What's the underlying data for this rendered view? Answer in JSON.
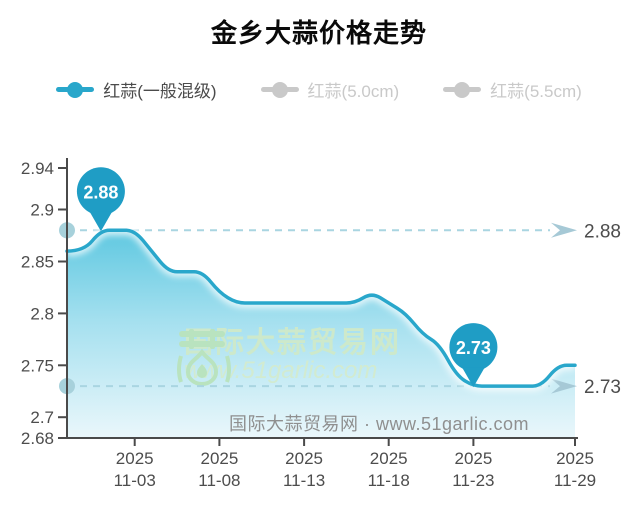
{
  "title": "金乡大蒜价格走势",
  "legend": {
    "items": [
      {
        "label": "红蒜(一般混级)",
        "active": true
      },
      {
        "label": "红蒜(5.0cm)",
        "active": false
      },
      {
        "label": "红蒜(5.5cm)",
        "active": false
      }
    ]
  },
  "watermark": {
    "brand": "国际大蒜贸易网",
    "url": "www.51garlic.com",
    "footer": "国际大蒜贸易网 · www.51garlic.com"
  },
  "colors": {
    "accent_line": "#29a7cb",
    "pin_fill": "#1f9dc5",
    "area_top": "#5cc7e0",
    "area_bottom": "#eaf7fb",
    "dashed_line": "#a9d5e1",
    "axis_dot": "#a7d1db",
    "arrow": "#a6c9d6",
    "inactive_gray": "#c9c9c9",
    "axis": "#4a4a4a",
    "watermark_green": "#cde9cb"
  },
  "chart_data": {
    "type": "area",
    "title": "金乡大蒜价格走势",
    "xlabel": "",
    "ylabel": "",
    "ylim": [
      2.68,
      2.94
    ],
    "grid": false,
    "legend_position": "top",
    "categories": [
      "2025-10-30",
      "2025-10-31",
      "2025-11-01",
      "2025-11-02",
      "2025-11-03",
      "2025-11-04",
      "2025-11-05",
      "2025-11-06",
      "2025-11-07",
      "2025-11-08",
      "2025-11-09",
      "2025-11-10",
      "2025-11-11",
      "2025-11-12",
      "2025-11-13",
      "2025-11-14",
      "2025-11-15",
      "2025-11-16",
      "2025-11-17",
      "2025-11-18",
      "2025-11-19",
      "2025-11-20",
      "2025-11-21",
      "2025-11-22",
      "2025-11-23",
      "2025-11-24",
      "2025-11-25",
      "2025-11-26",
      "2025-11-27",
      "2025-11-28",
      "2025-11-29"
    ],
    "series": [
      {
        "name": "红蒜(一般混级)",
        "values": [
          2.86,
          2.86,
          2.88,
          2.88,
          2.88,
          2.86,
          2.84,
          2.84,
          2.84,
          2.82,
          2.81,
          2.81,
          2.81,
          2.81,
          2.81,
          2.81,
          2.81,
          2.81,
          2.82,
          2.81,
          2.8,
          2.78,
          2.77,
          2.74,
          2.73,
          2.73,
          2.73,
          2.73,
          2.73,
          2.75,
          2.75
        ]
      }
    ],
    "y_ticks": [
      "2.94",
      "2.9",
      "2.85",
      "2.8",
      "2.75",
      "2.7",
      "2.68"
    ],
    "x_ticks": [
      {
        "i": 4,
        "top": "2025",
        "bottom": "11-03"
      },
      {
        "i": 9,
        "top": "2025",
        "bottom": "11-08"
      },
      {
        "i": 14,
        "top": "2025",
        "bottom": "11-13"
      },
      {
        "i": 19,
        "top": "2025",
        "bottom": "11-18"
      },
      {
        "i": 24,
        "top": "2025",
        "bottom": "11-23"
      },
      {
        "i": 30,
        "top": "2025",
        "bottom": "11-29"
      }
    ],
    "annotations": [
      {
        "label": "2.88",
        "value": 2.88,
        "pin_index": 2
      },
      {
        "label": "2.73",
        "value": 2.73,
        "pin_index": 24
      }
    ]
  }
}
